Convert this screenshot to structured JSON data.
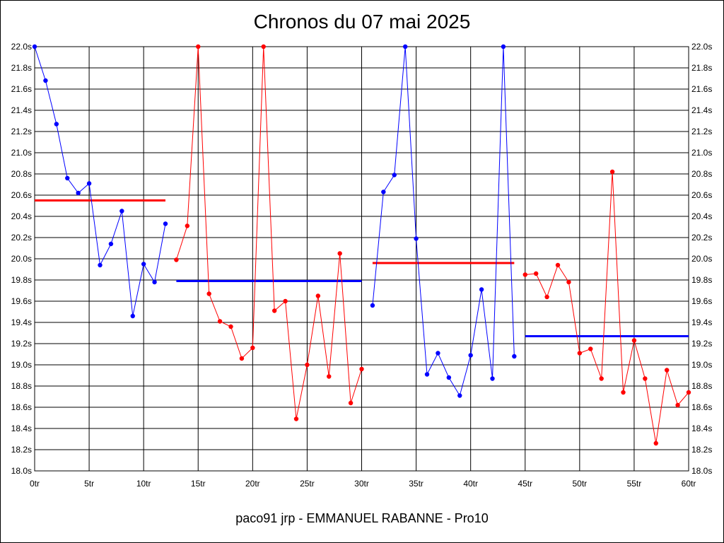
{
  "page": {
    "title": "Chronos du 07 mai 2025",
    "footer": "paco91 jrp - EMMANUEL RABANNE - Pro10"
  },
  "chart_data": {
    "type": "line",
    "title": "Chronos du 07 mai 2025",
    "xlabel": "",
    "ylabel": "",
    "xlim": [
      0,
      60
    ],
    "ylim": [
      18.0,
      22.0
    ],
    "grid": true,
    "y_axis_both_sides": true,
    "x_ticks": [
      0,
      5,
      10,
      15,
      20,
      25,
      30,
      35,
      40,
      45,
      50,
      55,
      60
    ],
    "x_tick_labels": [
      "0tr",
      "5tr",
      "10tr",
      "15tr",
      "20tr",
      "25tr",
      "30tr",
      "35tr",
      "40tr",
      "45tr",
      "50tr",
      "55tr",
      "60tr"
    ],
    "y_ticks": [
      18.0,
      18.2,
      18.4,
      18.6,
      18.8,
      19.0,
      19.2,
      19.4,
      19.6,
      19.8,
      20.0,
      20.2,
      20.4,
      20.6,
      20.8,
      21.0,
      21.2,
      21.4,
      21.6,
      21.8,
      22.0
    ],
    "y_tick_labels": [
      "18.0s",
      "18.2s",
      "18.4s",
      "18.6s",
      "18.8s",
      "19.0s",
      "19.2s",
      "19.4s",
      "19.6s",
      "19.8s",
      "20.0s",
      "20.2s",
      "20.4s",
      "20.6s",
      "20.8s",
      "21.0s",
      "21.2s",
      "21.4s",
      "21.6s",
      "21.8s",
      "22.0s"
    ],
    "series": [
      {
        "color": "#0000ff",
        "x": [
          0,
          1,
          2,
          3,
          4,
          5,
          6,
          7,
          8,
          9,
          10,
          11,
          12
        ],
        "y": [
          22.0,
          21.68,
          21.27,
          20.76,
          20.62,
          20.71,
          19.94,
          20.14,
          20.45,
          19.46,
          19.95,
          19.78,
          20.33
        ]
      },
      {
        "color": "#ff0000",
        "x": [
          13,
          14,
          15,
          16,
          17,
          18,
          19,
          20,
          21,
          22,
          23,
          24,
          25,
          26,
          27,
          28,
          29,
          30
        ],
        "y": [
          19.99,
          20.31,
          22.0,
          19.67,
          19.41,
          19.36,
          19.06,
          19.16,
          22.0,
          19.51,
          19.6,
          18.49,
          19.0,
          19.65,
          18.89,
          20.05,
          18.64,
          18.96
        ]
      },
      {
        "color": "#0000ff",
        "x": [
          31,
          32,
          33,
          34,
          35,
          36,
          37,
          38,
          39,
          40,
          41,
          42,
          43,
          44
        ],
        "y": [
          19.56,
          20.63,
          20.79,
          22.0,
          20.19,
          18.91,
          19.11,
          18.88,
          18.71,
          19.09,
          19.71,
          18.87,
          22.0,
          19.08
        ]
      },
      {
        "color": "#ff0000",
        "x": [
          45,
          46,
          47,
          48,
          49,
          50,
          51,
          52,
          53,
          54,
          55,
          56,
          57,
          58,
          59,
          60
        ],
        "y": [
          19.85,
          19.86,
          19.64,
          19.94,
          19.78,
          19.11,
          19.15,
          18.87,
          20.82,
          18.74,
          19.23,
          18.87,
          18.26,
          18.95,
          18.62,
          18.74
        ]
      }
    ],
    "averages": [
      {
        "color": "#ff0000",
        "x_start": 0,
        "x_end": 12,
        "value": 20.55
      },
      {
        "color": "#0000ff",
        "x_start": 13,
        "x_end": 30,
        "value": 19.79
      },
      {
        "color": "#ff0000",
        "x_start": 31,
        "x_end": 44,
        "value": 19.96
      },
      {
        "color": "#0000ff",
        "x_start": 45,
        "x_end": 60,
        "value": 19.27
      }
    ]
  }
}
